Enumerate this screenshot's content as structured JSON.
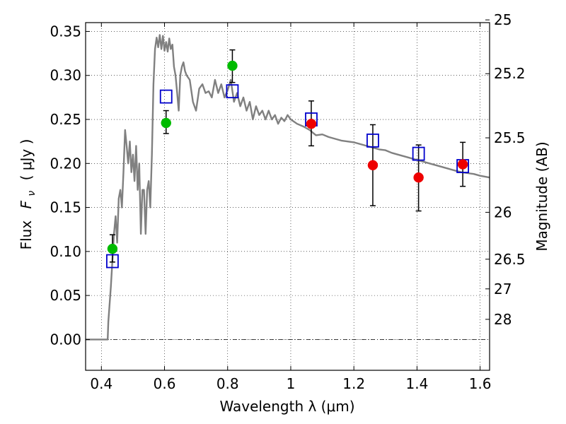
{
  "chart_data": {
    "type": "scatter",
    "xlabel": "Wavelength  λ (μm)",
    "ylabel_text": "Flux",
    "ylabel_symbol": "F",
    "ylabel_symbol_sub": "ν",
    "ylabel_unit": "( μJy )",
    "y2label": "Magnitude (AB)",
    "xlim": [
      0.35,
      1.63
    ],
    "ylim": [
      -0.035,
      0.36
    ],
    "grid": true,
    "x_ticks": [
      {
        "v": 0.4,
        "label": "0.4"
      },
      {
        "v": 0.6,
        "label": "0.6"
      },
      {
        "v": 0.8,
        "label": "0.8"
      },
      {
        "v": 1.0,
        "label": "1"
      },
      {
        "v": 1.2,
        "label": "1.2"
      },
      {
        "v": 1.4,
        "label": "1.4"
      },
      {
        "v": 1.6,
        "label": "1.6"
      }
    ],
    "y_ticks": [
      {
        "v": 0.0,
        "label": "0.00"
      },
      {
        "v": 0.05,
        "label": "0.05"
      },
      {
        "v": 0.1,
        "label": "0.10"
      },
      {
        "v": 0.15,
        "label": "0.15"
      },
      {
        "v": 0.2,
        "label": "0.20"
      },
      {
        "v": 0.25,
        "label": "0.25"
      },
      {
        "v": 0.3,
        "label": "0.30"
      },
      {
        "v": 0.35,
        "label": "0.35"
      }
    ],
    "y2_ticks": [
      {
        "flux": 0.3631,
        "label": "25"
      },
      {
        "flux": 0.302,
        "label": "25.2"
      },
      {
        "flux": 0.2291,
        "label": "25.5"
      },
      {
        "flux": 0.1445,
        "label": "26"
      },
      {
        "flux": 0.0912,
        "label": "26.5"
      },
      {
        "flux": 0.0575,
        "label": "27"
      },
      {
        "flux": 0.0229,
        "label": "28"
      }
    ],
    "colors": {
      "model": "#808080",
      "green": "#00bb00",
      "red": "#ee0000",
      "square": "#0000cc",
      "errorbar": "#000000",
      "zero_line": "#000000"
    },
    "model_spectrum": {
      "x": [
        0.35,
        0.4,
        0.42,
        0.422,
        0.43,
        0.435,
        0.44,
        0.445,
        0.45,
        0.455,
        0.46,
        0.465,
        0.47,
        0.475,
        0.48,
        0.485,
        0.49,
        0.495,
        0.5,
        0.505,
        0.51,
        0.515,
        0.52,
        0.525,
        0.53,
        0.535,
        0.54,
        0.545,
        0.55,
        0.555,
        0.56,
        0.565,
        0.57,
        0.575,
        0.58,
        0.585,
        0.59,
        0.595,
        0.6,
        0.605,
        0.61,
        0.615,
        0.62,
        0.625,
        0.63,
        0.635,
        0.64,
        0.645,
        0.65,
        0.655,
        0.66,
        0.665,
        0.67,
        0.68,
        0.69,
        0.7,
        0.71,
        0.72,
        0.73,
        0.74,
        0.75,
        0.76,
        0.77,
        0.78,
        0.79,
        0.8,
        0.81,
        0.82,
        0.83,
        0.84,
        0.85,
        0.86,
        0.87,
        0.88,
        0.89,
        0.9,
        0.91,
        0.92,
        0.93,
        0.94,
        0.95,
        0.96,
        0.97,
        0.98,
        0.99,
        1.0,
        1.02,
        1.04,
        1.06,
        1.08,
        1.1,
        1.12,
        1.14,
        1.16,
        1.18,
        1.2,
        1.22,
        1.24,
        1.26,
        1.28,
        1.3,
        1.32,
        1.34,
        1.36,
        1.38,
        1.4,
        1.42,
        1.44,
        1.46,
        1.48,
        1.5,
        1.52,
        1.54,
        1.56,
        1.58,
        1.6,
        1.63
      ],
      "y": [
        0.0,
        0.0,
        0.0,
        0.02,
        0.06,
        0.09,
        0.12,
        0.14,
        0.11,
        0.16,
        0.17,
        0.15,
        0.19,
        0.238,
        0.22,
        0.2,
        0.225,
        0.19,
        0.21,
        0.18,
        0.22,
        0.17,
        0.2,
        0.12,
        0.17,
        0.17,
        0.12,
        0.17,
        0.18,
        0.15,
        0.21,
        0.29,
        0.33,
        0.343,
        0.332,
        0.346,
        0.33,
        0.345,
        0.328,
        0.338,
        0.327,
        0.342,
        0.33,
        0.335,
        0.31,
        0.3,
        0.28,
        0.26,
        0.3,
        0.31,
        0.315,
        0.305,
        0.3,
        0.295,
        0.27,
        0.26,
        0.285,
        0.29,
        0.28,
        0.282,
        0.275,
        0.295,
        0.28,
        0.29,
        0.275,
        0.283,
        0.295,
        0.27,
        0.28,
        0.265,
        0.275,
        0.26,
        0.27,
        0.25,
        0.265,
        0.255,
        0.26,
        0.25,
        0.26,
        0.25,
        0.255,
        0.245,
        0.252,
        0.248,
        0.255,
        0.25,
        0.245,
        0.242,
        0.238,
        0.232,
        0.233,
        0.23,
        0.228,
        0.226,
        0.225,
        0.224,
        0.222,
        0.22,
        0.218,
        0.216,
        0.215,
        0.212,
        0.21,
        0.208,
        0.206,
        0.204,
        0.202,
        0.2,
        0.198,
        0.196,
        0.194,
        0.192,
        0.19,
        0.189,
        0.188,
        0.186,
        0.184
      ]
    },
    "series": [
      {
        "marker": "square",
        "color": "#0000cc",
        "x": [
          0.435,
          0.605,
          0.815,
          1.065,
          1.26,
          1.405,
          1.545
        ],
        "y": [
          0.089,
          0.276,
          0.282,
          0.25,
          0.226,
          0.211,
          0.197
        ]
      },
      {
        "marker": "circle",
        "color": "#00bb00",
        "x": [
          0.435,
          0.605,
          0.815
        ],
        "y": [
          0.103,
          0.246,
          0.311
        ],
        "yerr_low": [
          0.088,
          0.234,
          0.292
        ],
        "yerr_high": [
          0.119,
          0.26,
          0.329
        ]
      },
      {
        "marker": "circle",
        "color": "#ee0000",
        "x": [
          1.065,
          1.26,
          1.405,
          1.545
        ],
        "y": [
          0.245,
          0.198,
          0.184,
          0.199
        ],
        "yerr_low": [
          0.22,
          0.152,
          0.146,
          0.174
        ],
        "yerr_high": [
          0.271,
          0.244,
          0.221,
          0.224
        ]
      }
    ]
  }
}
